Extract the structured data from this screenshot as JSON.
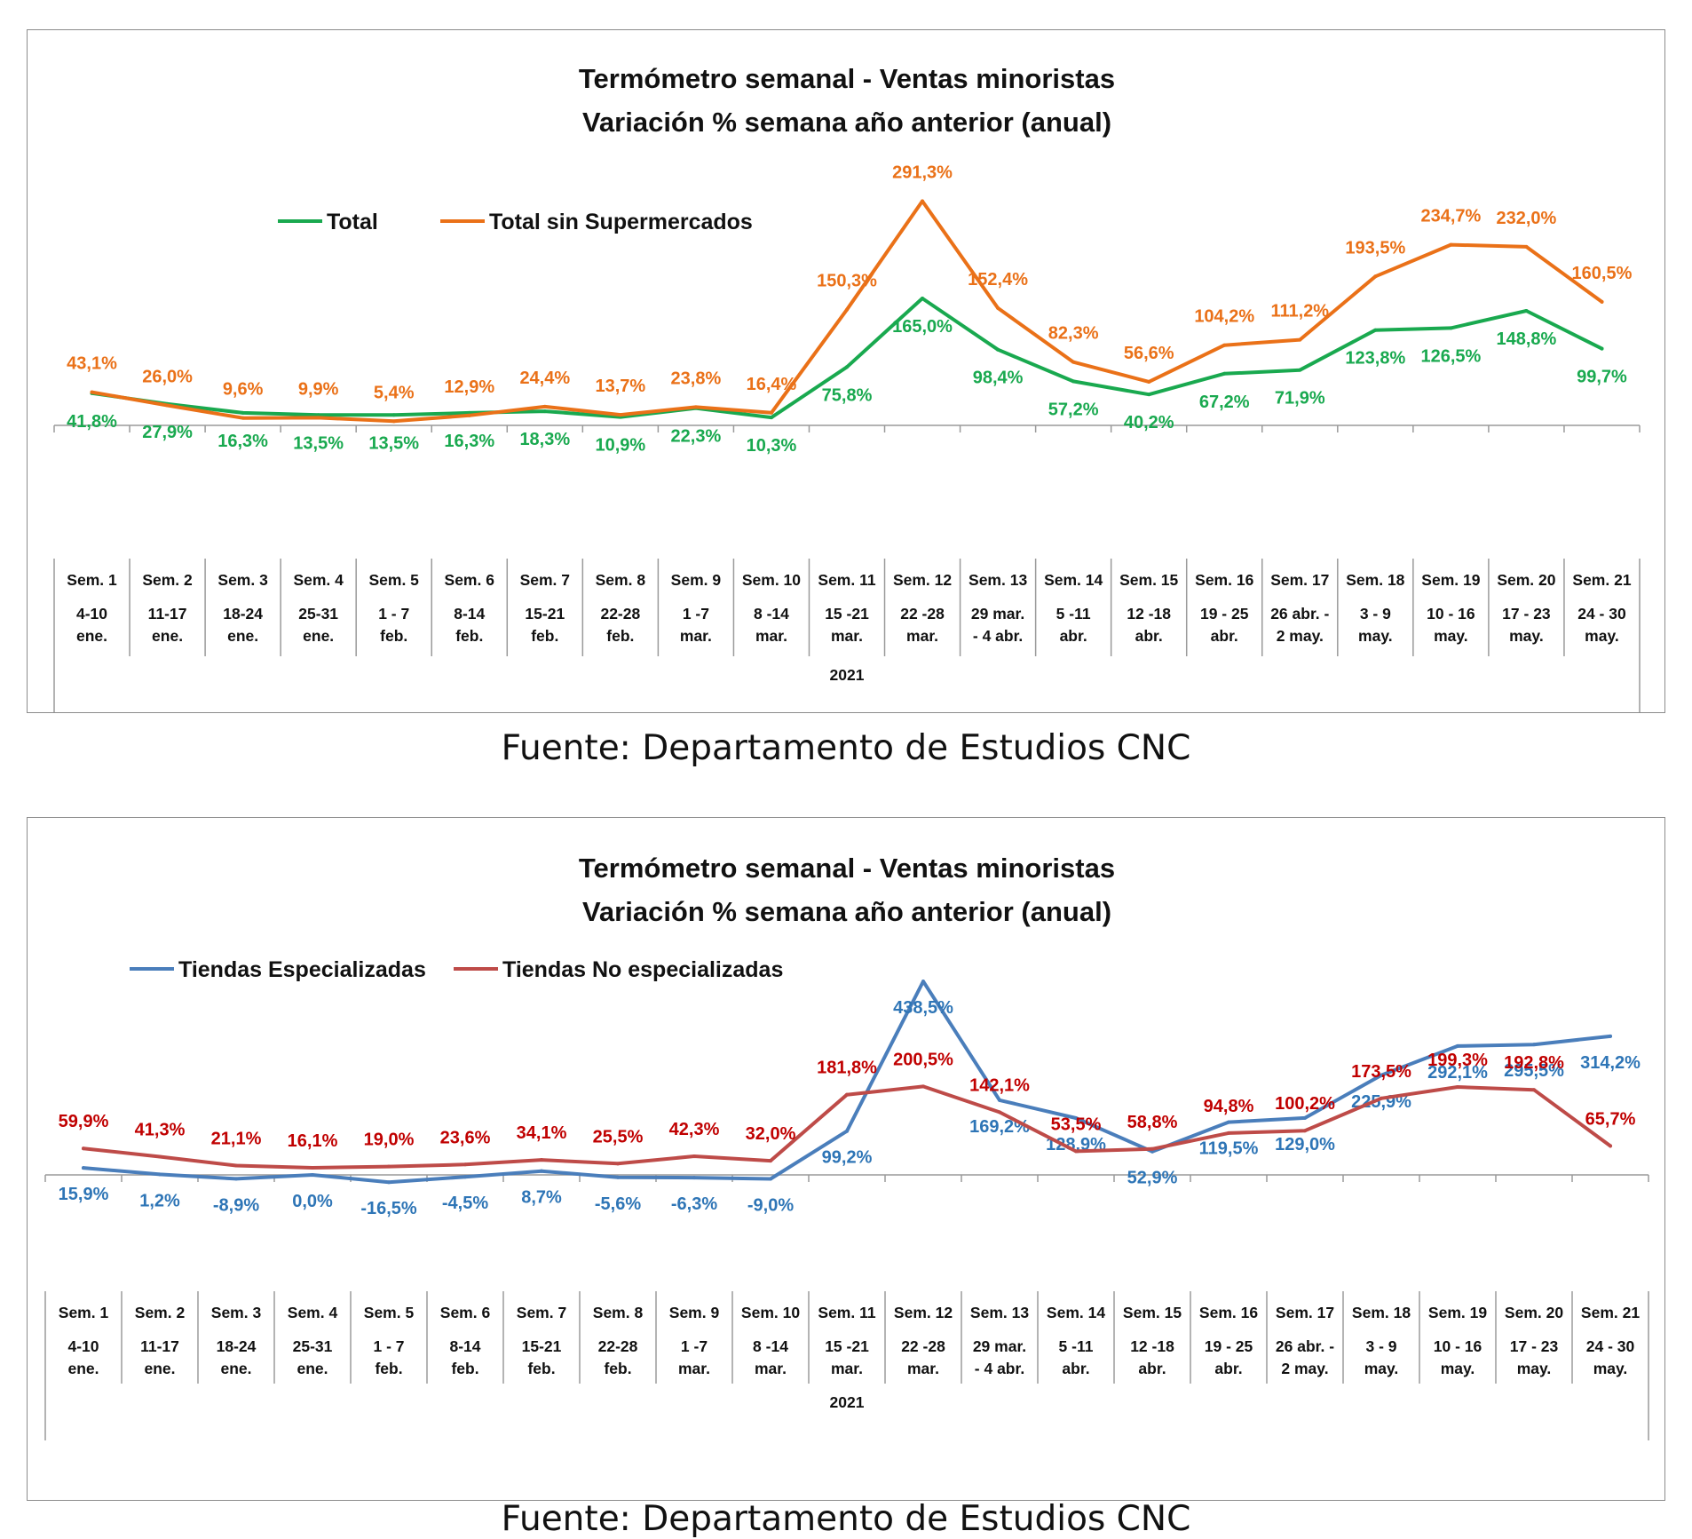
{
  "source": "Fuente: Departamento de Estudios CNC",
  "chart_data": [
    {
      "type": "line",
      "title": "Termómetro semanal - Ventas minoristas",
      "subtitle": "Variación % semana año anterior (anual)",
      "year_label": "2021",
      "ylim": [
        -120,
        330
      ],
      "grid": false,
      "legend_position": "top-left",
      "categories": [
        {
          "week": "Sem. 1",
          "dates": [
            "4-10",
            "ene."
          ]
        },
        {
          "week": "Sem. 2",
          "dates": [
            "11-17",
            "ene."
          ]
        },
        {
          "week": "Sem. 3",
          "dates": [
            "18-24",
            "ene."
          ]
        },
        {
          "week": "Sem. 4",
          "dates": [
            "25-31",
            "ene."
          ]
        },
        {
          "week": "Sem. 5",
          "dates": [
            "1 - 7",
            "feb."
          ]
        },
        {
          "week": "Sem. 6",
          "dates": [
            "8-14",
            "feb."
          ]
        },
        {
          "week": "Sem. 7",
          "dates": [
            "15-21",
            "feb."
          ]
        },
        {
          "week": "Sem. 8",
          "dates": [
            "22-28",
            "feb."
          ]
        },
        {
          "week": "Sem. 9",
          "dates": [
            "1 -7",
            "mar."
          ]
        },
        {
          "week": "Sem. 10",
          "dates": [
            "8 -14",
            "mar."
          ]
        },
        {
          "week": "Sem. 11",
          "dates": [
            "15 -21",
            "mar."
          ]
        },
        {
          "week": "Sem. 12",
          "dates": [
            "22 -28",
            "mar."
          ]
        },
        {
          "week": "Sem. 13",
          "dates": [
            "29 mar.",
            "- 4 abr."
          ]
        },
        {
          "week": "Sem. 14",
          "dates": [
            "5 -11",
            "abr."
          ]
        },
        {
          "week": "Sem. 15",
          "dates": [
            "12 -18",
            "abr."
          ]
        },
        {
          "week": "Sem. 16",
          "dates": [
            "19 - 25",
            "abr."
          ]
        },
        {
          "week": "Sem. 17",
          "dates": [
            "26 abr. -",
            "2 may."
          ]
        },
        {
          "week": "Sem. 18",
          "dates": [
            "3 - 9",
            "may."
          ]
        },
        {
          "week": "Sem. 19",
          "dates": [
            "10 - 16",
            "may."
          ]
        },
        {
          "week": "Sem. 20",
          "dates": [
            "17 - 23",
            "may."
          ]
        },
        {
          "week": "Sem. 21",
          "dates": [
            "24 - 30",
            "may."
          ]
        }
      ],
      "series": [
        {
          "name": "Total",
          "color": "#19a94f",
          "label_side": "below",
          "values": [
            41.8,
            27.9,
            16.3,
            13.5,
            13.5,
            16.3,
            18.3,
            10.9,
            22.3,
            10.3,
            75.8,
            165.0,
            98.4,
            57.2,
            40.2,
            67.2,
            71.9,
            123.8,
            126.5,
            148.8,
            99.7
          ],
          "labels": [
            "41,8%",
            "27,9%",
            "16,3%",
            "13,5%",
            "13,5%",
            "16,3%",
            "18,3%",
            "10,9%",
            "22,3%",
            "10,3%",
            "75,8%",
            "165,0%",
            "98,4%",
            "57,2%",
            "40,2%",
            "67,2%",
            "71,9%",
            "123,8%",
            "126,5%",
            "148,8%",
            "99,7%"
          ]
        },
        {
          "name": "Total sin Supermercados",
          "color": "#ea7118",
          "label_side": "above",
          "values": [
            43.1,
            26.0,
            9.6,
            9.9,
            5.4,
            12.9,
            24.4,
            13.7,
            23.8,
            16.4,
            150.3,
            291.3,
            152.4,
            82.3,
            56.6,
            104.2,
            111.2,
            193.5,
            234.7,
            232.0,
            160.5
          ],
          "labels": [
            "43,1%",
            "26,0%",
            "9,6%",
            "9,9%",
            "5,4%",
            "12,9%",
            "24,4%",
            "13,7%",
            "23,8%",
            "16,4%",
            "150,3%",
            "291,3%",
            "152,4%",
            "82,3%",
            "56,6%",
            "104,2%",
            "111,2%",
            "193,5%",
            "234,7%",
            "232,0%",
            "160,5%"
          ]
        }
      ]
    },
    {
      "type": "line",
      "title": "Termómetro semanal - Ventas minoristas",
      "subtitle": "Variación % semana año anterior (anual)",
      "year_label": "2021",
      "ylim": [
        -100,
        540
      ],
      "grid": false,
      "legend_position": "top-left",
      "categories": [
        {
          "week": "Sem. 1",
          "dates": [
            "4-10",
            "ene."
          ]
        },
        {
          "week": "Sem. 2",
          "dates": [
            "11-17",
            "ene."
          ]
        },
        {
          "week": "Sem. 3",
          "dates": [
            "18-24",
            "ene."
          ]
        },
        {
          "week": "Sem. 4",
          "dates": [
            "25-31",
            "ene."
          ]
        },
        {
          "week": "Sem. 5",
          "dates": [
            "1 - 7",
            "feb."
          ]
        },
        {
          "week": "Sem. 6",
          "dates": [
            "8-14",
            "feb."
          ]
        },
        {
          "week": "Sem. 7",
          "dates": [
            "15-21",
            "feb."
          ]
        },
        {
          "week": "Sem. 8",
          "dates": [
            "22-28",
            "feb."
          ]
        },
        {
          "week": "Sem. 9",
          "dates": [
            "1 -7",
            "mar."
          ]
        },
        {
          "week": "Sem. 10",
          "dates": [
            "8 -14",
            "mar."
          ]
        },
        {
          "week": "Sem. 11",
          "dates": [
            "15 -21",
            "mar."
          ]
        },
        {
          "week": "Sem. 12",
          "dates": [
            "22 -28",
            "mar."
          ]
        },
        {
          "week": "Sem. 13",
          "dates": [
            "29 mar.",
            "- 4 abr."
          ]
        },
        {
          "week": "Sem. 14",
          "dates": [
            "5 -11",
            "abr."
          ]
        },
        {
          "week": "Sem. 15",
          "dates": [
            "12 -18",
            "abr."
          ]
        },
        {
          "week": "Sem. 16",
          "dates": [
            "19 - 25",
            "abr."
          ]
        },
        {
          "week": "Sem. 17",
          "dates": [
            "26 abr. -",
            "2 may."
          ]
        },
        {
          "week": "Sem. 18",
          "dates": [
            "3 - 9",
            "may."
          ]
        },
        {
          "week": "Sem. 19",
          "dates": [
            "10 - 16",
            "may."
          ]
        },
        {
          "week": "Sem. 20",
          "dates": [
            "17 - 23",
            "may."
          ]
        },
        {
          "week": "Sem. 21",
          "dates": [
            "24 - 30",
            "may."
          ]
        }
      ],
      "series": [
        {
          "name": "Tiendas Especializadas",
          "color": "#4a7ebb",
          "label_color": "#2e75b6",
          "label_side": "below",
          "values": [
            15.9,
            1.2,
            -8.9,
            0.0,
            -16.5,
            -4.5,
            8.7,
            -5.6,
            -6.3,
            -9.0,
            99.2,
            438.5,
            169.2,
            128.9,
            52.9,
            119.5,
            129.0,
            225.9,
            292.1,
            295.5,
            314.2
          ],
          "labels": [
            "15,9%",
            "1,2%",
            "-8,9%",
            "0,0%",
            "-16,5%",
            "-4,5%",
            "8,7%",
            "-5,6%",
            "-6,3%",
            "-9,0%",
            "99,2%",
            "438,5%",
            "169,2%",
            "128,9%",
            "52,9%",
            "119,5%",
            "129,0%",
            "225,9%",
            "292,1%",
            "295,5%",
            "314,2%"
          ]
        },
        {
          "name": "Tiendas No especializadas",
          "color": "#be4b48",
          "label_color": "#c00000",
          "label_side": "above",
          "values": [
            59.9,
            41.3,
            21.1,
            16.1,
            19.0,
            23.6,
            34.1,
            25.5,
            42.3,
            32.0,
            181.8,
            200.5,
            142.1,
            53.5,
            58.8,
            94.8,
            100.2,
            173.5,
            199.3,
            192.8,
            65.7
          ],
          "labels": [
            "59,9%",
            "41,3%",
            "21,1%",
            "16,1%",
            "19,0%",
            "23,6%",
            "34,1%",
            "25,5%",
            "42,3%",
            "32,0%",
            "181,8%",
            "200,5%",
            "142,1%",
            "53,5%",
            "58,8%",
            "94,8%",
            "100,2%",
            "173,5%",
            "199,3%",
            "192,8%",
            "65,7%"
          ]
        }
      ]
    }
  ]
}
